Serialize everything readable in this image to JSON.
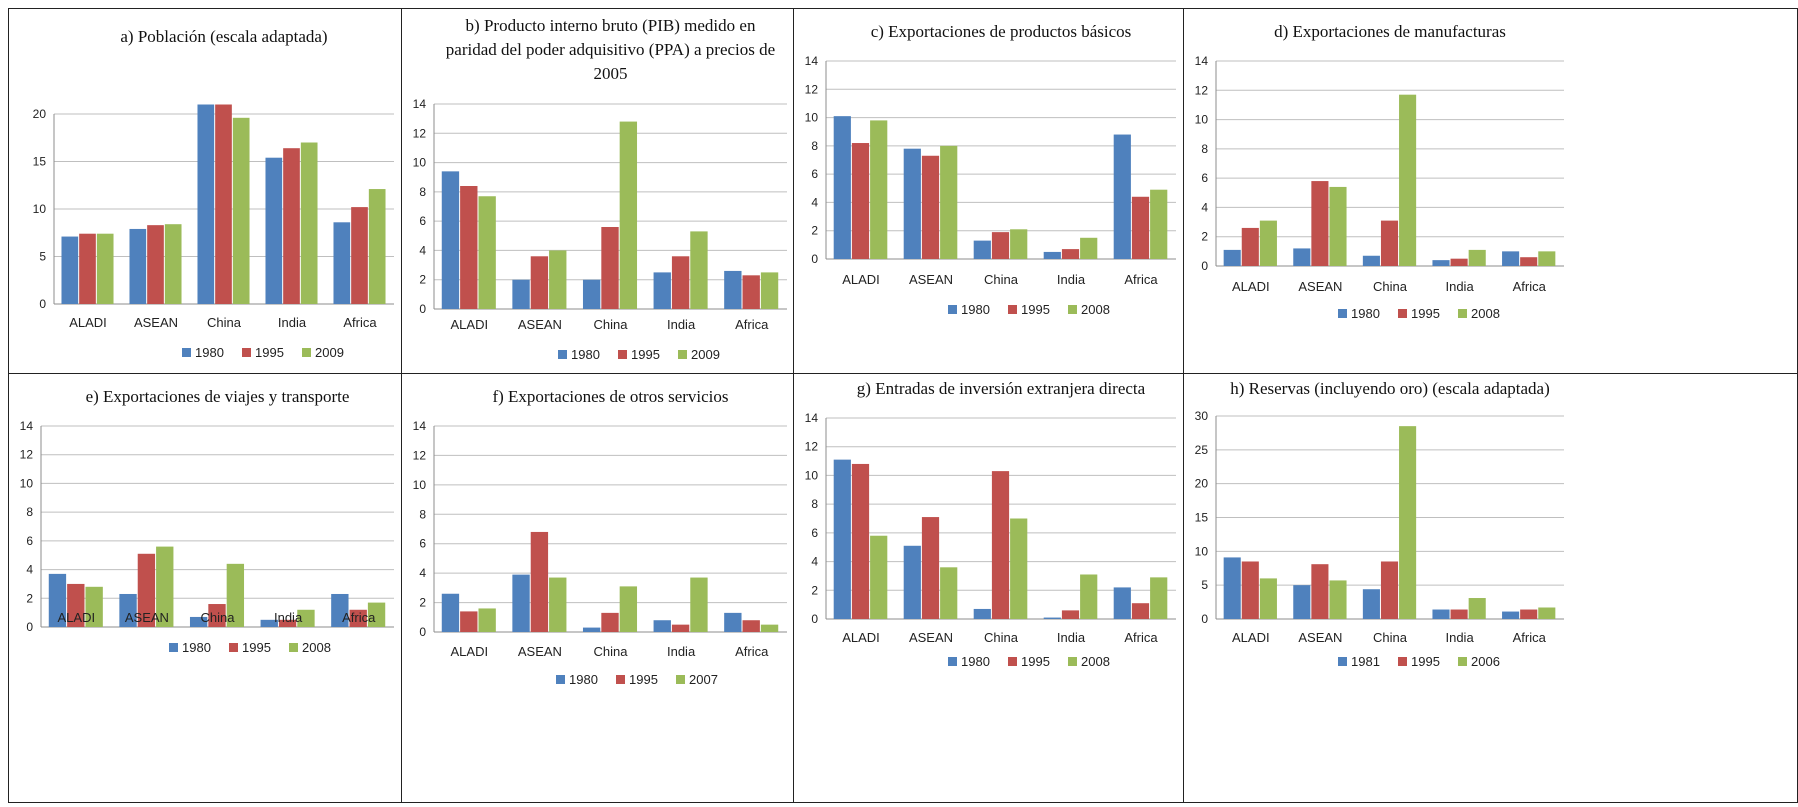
{
  "colors": {
    "s1": "#4F81BD",
    "s2": "#C0504D",
    "s3": "#9BBB59",
    "grid": "#BFBFBF",
    "axis": "#8C8C8C"
  },
  "chart_data": [
    {
      "type": "bar",
      "title": "a) Población (escala adaptada)",
      "title_lines": [
        "a) Población (escala adaptada)"
      ],
      "categories": [
        "ALADI",
        "ASEAN",
        "China",
        "India",
        "Africa"
      ],
      "ylim": [
        0,
        20
      ],
      "yticks": [
        0,
        5,
        10,
        15,
        20
      ],
      "legend": "bottom",
      "grid": true,
      "series": [
        {
          "name": "1980",
          "values": [
            7.1,
            7.9,
            21.9,
            15.4,
            8.6
          ]
        },
        {
          "name": "1995",
          "values": [
            7.4,
            8.3,
            21.1,
            16.4,
            10.2
          ]
        },
        {
          "name": "2009",
          "values": [
            7.4,
            8.4,
            19.6,
            17.0,
            12.1
          ]
        }
      ]
    },
    {
      "type": "bar",
      "title": "b) Producto interno bruto (PIB) medido en paridad del poder adquisitivo (PPA) a precios de 2005",
      "title_lines": [
        "b) Producto interno bruto (PIB) medido en",
        "paridad del poder adquisitivo (PPA) a precios de",
        "2005"
      ],
      "categories": [
        "ALADI",
        "ASEAN",
        "China",
        "India",
        "Africa"
      ],
      "ylim": [
        0,
        14
      ],
      "yticks": [
        0,
        2,
        4,
        6,
        8,
        10,
        12,
        14
      ],
      "legend": "bottom",
      "grid": true,
      "series": [
        {
          "name": "1980",
          "values": [
            9.4,
            2.0,
            2.0,
            2.5,
            2.6
          ]
        },
        {
          "name": "1995",
          "values": [
            8.4,
            3.6,
            5.6,
            3.6,
            2.3
          ]
        },
        {
          "name": "2009",
          "values": [
            7.7,
            4.0,
            12.8,
            5.3,
            2.5
          ]
        }
      ]
    },
    {
      "type": "bar",
      "title": "c) Exportaciones de productos básicos",
      "title_lines": [
        "c) Exportaciones de productos básicos"
      ],
      "categories": [
        "ALADI",
        "ASEAN",
        "China",
        "India",
        "Africa"
      ],
      "ylim": [
        0,
        14
      ],
      "yticks": [
        0,
        2,
        4,
        6,
        8,
        10,
        12,
        14
      ],
      "legend": "bottom",
      "grid": true,
      "series": [
        {
          "name": "1980",
          "values": [
            10.1,
            7.8,
            1.3,
            0.5,
            8.8
          ]
        },
        {
          "name": "1995",
          "values": [
            8.2,
            7.3,
            1.9,
            0.7,
            4.4
          ]
        },
        {
          "name": "2008",
          "values": [
            9.8,
            8.0,
            2.1,
            1.5,
            4.9
          ]
        }
      ]
    },
    {
      "type": "bar",
      "title": "d) Exportaciones de manufacturas",
      "title_lines": [
        "d) Exportaciones de manufacturas"
      ],
      "categories": [
        "ALADI",
        "ASEAN",
        "China",
        "India",
        "Africa"
      ],
      "ylim": [
        0,
        14
      ],
      "yticks": [
        0,
        2,
        4,
        6,
        8,
        10,
        12,
        14
      ],
      "legend": "bottom",
      "grid": true,
      "series": [
        {
          "name": "1980",
          "values": [
            1.1,
            1.2,
            0.7,
            0.4,
            1.0
          ]
        },
        {
          "name": "1995",
          "values": [
            2.6,
            5.8,
            3.1,
            0.5,
            0.6
          ]
        },
        {
          "name": "2008",
          "values": [
            3.1,
            5.4,
            11.7,
            1.1,
            1.0
          ]
        }
      ]
    },
    {
      "type": "bar",
      "title": "e) Exportaciones de viajes y transporte",
      "title_lines": [
        "e) Exportaciones de viajes y transporte"
      ],
      "categories": [
        "ALADI",
        "ASEAN",
        "China",
        "India",
        "Africa"
      ],
      "ylim": [
        0,
        14
      ],
      "yticks": [
        0,
        2,
        4,
        6,
        8,
        10,
        12,
        14
      ],
      "legend": "bottom",
      "grid": true,
      "series": [
        {
          "name": "1980",
          "values": [
            3.7,
            2.3,
            0.7,
            0.5,
            2.3
          ]
        },
        {
          "name": "1995",
          "values": [
            3.0,
            5.1,
            1.6,
            0.5,
            1.2
          ]
        },
        {
          "name": "2008",
          "values": [
            2.8,
            5.6,
            4.4,
            1.2,
            1.7
          ]
        }
      ]
    },
    {
      "type": "bar",
      "title": "f) Exportaciones de otros servicios",
      "title_lines": [
        "f) Exportaciones de otros servicios"
      ],
      "categories": [
        "ALADI",
        "ASEAN",
        "China",
        "India",
        "Africa"
      ],
      "ylim": [
        0,
        14
      ],
      "yticks": [
        0,
        2,
        4,
        6,
        8,
        10,
        12,
        14
      ],
      "legend": "bottom",
      "grid": true,
      "series": [
        {
          "name": "1980",
          "values": [
            2.6,
            3.9,
            0.3,
            0.8,
            1.3
          ]
        },
        {
          "name": "1995",
          "values": [
            1.4,
            6.8,
            1.3,
            0.5,
            0.8
          ]
        },
        {
          "name": "2007",
          "values": [
            1.6,
            3.7,
            3.1,
            3.7,
            0.5
          ]
        }
      ]
    },
    {
      "type": "bar",
      "title": "g) Entradas de inversión extranjera directa",
      "title_lines": [
        "g) Entradas de inversión extranjera directa"
      ],
      "categories": [
        "ALADI",
        "ASEAN",
        "China",
        "India",
        "Africa"
      ],
      "ylim": [
        0,
        14
      ],
      "yticks": [
        0,
        2,
        4,
        6,
        8,
        10,
        12,
        14
      ],
      "legend": "bottom",
      "grid": true,
      "series": [
        {
          "name": "1980",
          "values": [
            11.1,
            5.1,
            0.7,
            0.1,
            2.2
          ]
        },
        {
          "name": "1995",
          "values": [
            10.8,
            7.1,
            10.3,
            0.6,
            1.1
          ]
        },
        {
          "name": "2008",
          "values": [
            5.8,
            3.6,
            7.0,
            3.1,
            2.9
          ]
        }
      ]
    },
    {
      "type": "bar",
      "title": "h) Reservas (incluyendo oro) (escala adaptada)",
      "title_lines": [
        "h) Reservas (incluyendo oro) (escala adaptada)"
      ],
      "categories": [
        "ALADI",
        "ASEAN",
        "China",
        "India",
        "Africa"
      ],
      "ylim": [
        0,
        30
      ],
      "yticks": [
        0,
        5,
        10,
        15,
        20,
        25,
        30
      ],
      "legend": "bottom",
      "grid": true,
      "series": [
        {
          "name": "1981",
          "values": [
            9.1,
            5.0,
            4.4,
            1.4,
            1.1
          ]
        },
        {
          "name": "1995",
          "values": [
            8.5,
            8.1,
            8.5,
            1.4,
            1.4
          ]
        },
        {
          "name": "2006",
          "values": [
            6.0,
            5.7,
            28.5,
            3.1,
            1.7
          ]
        }
      ]
    }
  ]
}
